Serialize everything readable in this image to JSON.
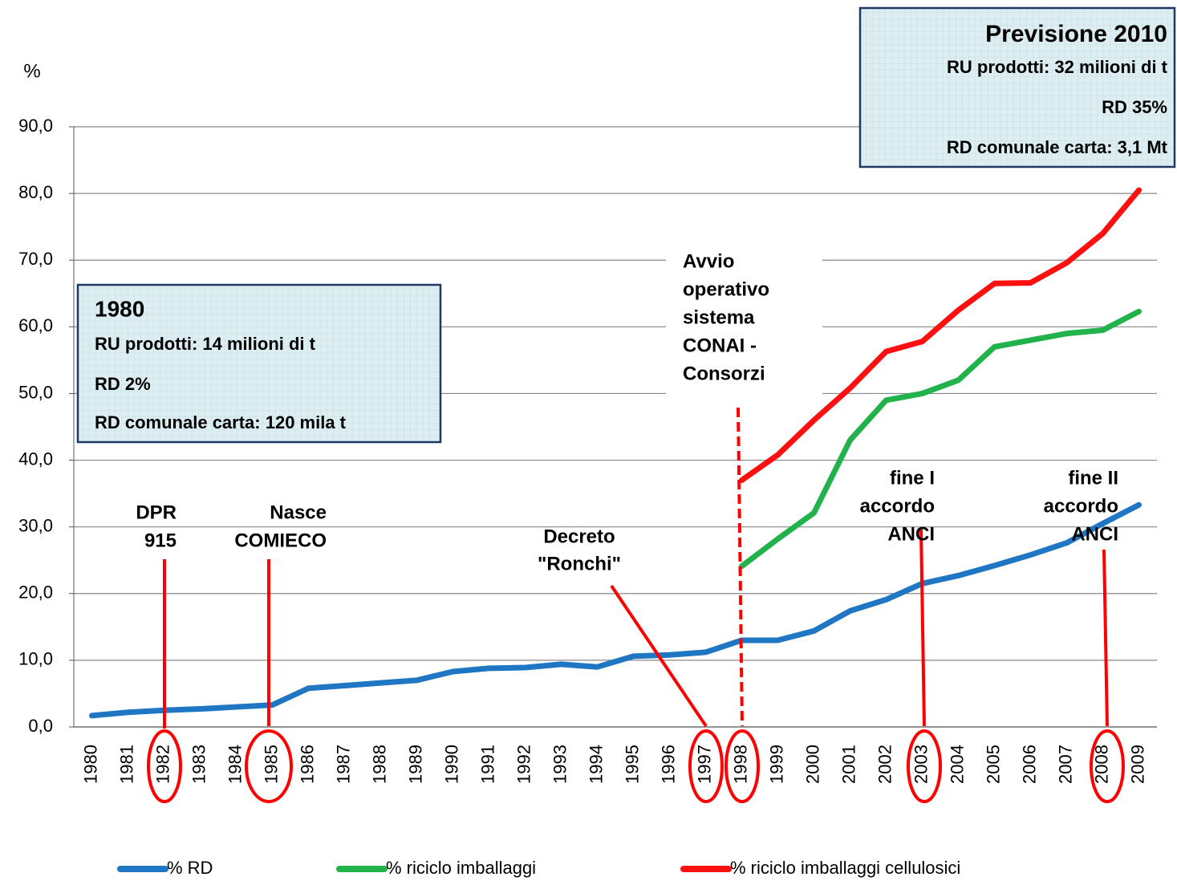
{
  "chart_data": {
    "type": "line",
    "y_label": "%",
    "categories": [
      "1980",
      "1981",
      "1982",
      "1983",
      "1984",
      "1985",
      "1986",
      "1987",
      "1988",
      "1989",
      "1990",
      "1991",
      "1992",
      "1993",
      "1994",
      "1995",
      "1996",
      "1997",
      "1998",
      "1999",
      "2000",
      "2001",
      "2002",
      "2003",
      "2004",
      "2005",
      "2006",
      "2007",
      "2008",
      "2009"
    ],
    "series": [
      {
        "name": "% RD",
        "color": "#1f77c4",
        "values": [
          1.7,
          2.2,
          2.5,
          2.7,
          3.0,
          3.3,
          5.8,
          6.2,
          6.6,
          7.0,
          8.3,
          8.8,
          8.9,
          9.4,
          9.0,
          10.6,
          10.8,
          11.2,
          13.0,
          13.0,
          14.4,
          17.4,
          19.1,
          21.5,
          22.7,
          24.2,
          25.8,
          27.6,
          30.5,
          33.3
        ]
      },
      {
        "name": "% riciclo imballaggi",
        "color": "#22b24c",
        "values": [
          null,
          null,
          null,
          null,
          null,
          null,
          null,
          null,
          null,
          null,
          null,
          null,
          null,
          null,
          null,
          null,
          null,
          null,
          24.1,
          28.2,
          32.1,
          43.0,
          49.0,
          50.0,
          52.0,
          57.0,
          58.0,
          59.0,
          59.5,
          62.3
        ]
      },
      {
        "name": "% riciclo imballaggi cellulosici",
        "color": "#ff1010",
        "values": [
          null,
          null,
          null,
          null,
          null,
          null,
          null,
          null,
          null,
          null,
          null,
          null,
          null,
          null,
          null,
          null,
          null,
          null,
          37.0,
          40.8,
          46.0,
          50.8,
          56.3,
          57.8,
          62.5,
          66.5,
          66.6,
          69.6,
          74.0,
          80.5
        ]
      }
    ],
    "ylim": [
      0,
      90
    ],
    "yticks": [
      {
        "value": 0,
        "label": "0,0"
      },
      {
        "value": 10,
        "label": "10,0"
      },
      {
        "value": 20,
        "label": "20,0"
      },
      {
        "value": 30,
        "label": "30,0"
      },
      {
        "value": 40,
        "label": "40,0"
      },
      {
        "value": 50,
        "label": "50,0"
      },
      {
        "value": 60,
        "label": "60,0"
      },
      {
        "value": 70,
        "label": "70,0"
      },
      {
        "value": 80,
        "label": "80,0"
      },
      {
        "value": 90,
        "label": "90,0"
      }
    ],
    "grid": true,
    "legend": "bottom",
    "boxes": [
      {
        "lines": [
          "1980",
          "RU prodotti: 14 milioni di t",
          "RD 2%",
          "RD comunale carta: 120 mila t"
        ]
      },
      {
        "lines": [
          "Previsione 2010",
          "RU prodotti: 32 milioni di t",
          "RD 35%",
          "RD comunale carta: 3,1 Mt"
        ]
      }
    ],
    "annotations": [
      {
        "lines": [
          "DPR",
          "915"
        ]
      },
      {
        "lines": [
          "Nasce",
          "COMIECO"
        ]
      },
      {
        "lines": [
          "Decreto",
          "\"Ronchi\""
        ]
      },
      {
        "lines": [
          "Avvio",
          "operativo",
          "sistema",
          "CONAI -",
          "Consorzi"
        ]
      },
      {
        "lines": [
          "fine I",
          "accordo",
          "ANCI"
        ]
      },
      {
        "lines": [
          "fine II",
          "accordo",
          "ANCI"
        ]
      }
    ]
  }
}
